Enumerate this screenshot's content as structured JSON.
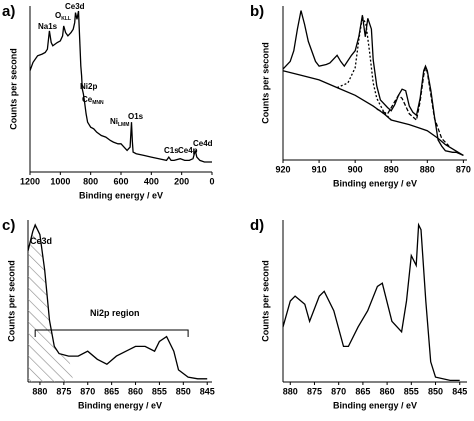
{
  "chart_data": [
    {
      "type": "line",
      "panel_label": "a)",
      "x_label": "Binding energy / eV",
      "y_label": "Counts per second",
      "xlim": [
        1200,
        0
      ],
      "xticks": [
        1200,
        1000,
        800,
        600,
        400,
        200,
        0
      ],
      "ylim": [
        0,
        100
      ],
      "annotations": [
        {
          "text": "Na1s"
        },
        {
          "text": "O",
          "sub": "KLL"
        },
        {
          "text": "Ce3d"
        },
        {
          "text": "Ni2p"
        },
        {
          "text": "Ce",
          "sub": "MNN"
        },
        {
          "text": "Ni",
          "sub": "LMM"
        },
        {
          "text": "O1s"
        },
        {
          "text": "C1s"
        },
        {
          "text": "Ce4p"
        },
        {
          "text": "Ce4d"
        }
      ],
      "series": [
        {
          "color": "#000000",
          "dash": "solid",
          "x": [
            1200,
            1180,
            1150,
            1120,
            1100,
            1085,
            1072,
            1060,
            1050,
            1020,
            1000,
            985,
            978,
            965,
            950,
            930,
            915,
            905,
            900,
            890,
            880,
            872,
            865,
            860,
            855,
            848,
            840,
            830,
            820,
            800,
            780,
            760,
            730,
            700,
            670,
            650,
            620,
            600,
            560,
            540,
            531,
            525,
            520,
            500,
            450,
            400,
            350,
            300,
            285,
            270,
            250,
            210,
            180,
            150,
            125,
            110,
            100,
            80,
            50,
            20,
            0
          ],
          "values": [
            61,
            66,
            70,
            71,
            72,
            74,
            85,
            78,
            76,
            78,
            79,
            82,
            88,
            84,
            82,
            84,
            86,
            90,
            96,
            92,
            97,
            80,
            64,
            58,
            50,
            47,
            42,
            35,
            30,
            27,
            26,
            24,
            22,
            21,
            19,
            18,
            17,
            17,
            13,
            15,
            30,
            18,
            12,
            11,
            10,
            9,
            8,
            7,
            9,
            7,
            7,
            8,
            7,
            7,
            8,
            13,
            9,
            7,
            6,
            6,
            6
          ]
        }
      ]
    },
    {
      "type": "line",
      "panel_label": "b)",
      "x_label": "Binding energy / eV",
      "y_label": "Counts per second",
      "xlim": [
        920,
        869
      ],
      "xticks": [
        920,
        910,
        900,
        890,
        880,
        870
      ],
      "ylim": [
        0,
        100
      ],
      "series": [
        {
          "color": "#000000",
          "dash": "solid",
          "x": [
            920,
            918,
            917,
            916,
            915,
            914,
            913,
            911,
            910,
            908,
            907,
            905,
            904,
            903,
            901,
            900,
            899,
            898,
            897.2,
            896.5,
            895.5,
            895,
            894,
            893,
            891,
            890,
            889,
            888,
            887,
            886,
            885,
            884,
            883,
            882,
            881,
            880.5,
            880,
            879,
            878,
            877,
            876,
            875,
            873,
            872,
            870
          ],
          "values": [
            59,
            64,
            71,
            85,
            97,
            88,
            77,
            64,
            61,
            62,
            63,
            68,
            64,
            61,
            68,
            71,
            80,
            94,
            80,
            92,
            85,
            65,
            48,
            39,
            34,
            32,
            36,
            42,
            46,
            45,
            35,
            31,
            29,
            40,
            58,
            61,
            58,
            45,
            28,
            13,
            9,
            6,
            5,
            5,
            3
          ]
        },
        {
          "color": "#000000",
          "dash": "solid",
          "x": [
            920,
            915,
            910,
            905,
            900,
            895,
            892,
            890,
            885,
            880,
            877,
            875,
            870
          ],
          "values": [
            58,
            55,
            52,
            47,
            42,
            35,
            30,
            26,
            23,
            19,
            14,
            10,
            3
          ]
        },
        {
          "color": "#000000",
          "dash": "2,2",
          "x": [
            905,
            902,
            900,
            899,
            898,
            897,
            896,
            895,
            894,
            892,
            890
          ],
          "values": [
            47,
            50,
            60,
            78,
            93,
            88,
            70,
            50,
            40,
            31,
            26
          ]
        },
        {
          "color": "#000000",
          "dash": "4,2",
          "x": [
            894,
            891,
            889,
            888,
            887,
            885,
            883,
            882,
            881,
            880.5,
            880,
            879,
            878,
            876,
            874
          ],
          "values": [
            33,
            30,
            38,
            42,
            40,
            30,
            26,
            38,
            55,
            60,
            57,
            42,
            27,
            14,
            9
          ]
        }
      ]
    },
    {
      "type": "line",
      "panel_label": "c)",
      "x_label": "Binding energy / eV",
      "y_label": "Counts per second",
      "xlim": [
        882.5,
        844
      ],
      "xticks": [
        880,
        875,
        870,
        865,
        860,
        855,
        850,
        845
      ],
      "ylim": [
        0,
        100
      ],
      "annotations": [
        {
          "text": "Ce3d"
        },
        {
          "text": "Ni2p region"
        }
      ],
      "series": [
        {
          "color": "#000000",
          "dash": "solid",
          "x": [
            882.5,
            881.5,
            881,
            880,
            879,
            878,
            877,
            876,
            874,
            872,
            870,
            868,
            866,
            864,
            862,
            860,
            858,
            856,
            855,
            853.5,
            852,
            851,
            849,
            847,
            845
          ],
          "values": [
            81,
            93,
            97,
            91,
            69,
            38,
            22,
            17.5,
            16,
            16,
            19,
            14,
            11,
            16,
            19,
            22,
            22,
            19,
            25,
            28,
            19,
            7.5,
            3,
            2,
            2
          ]
        }
      ]
    },
    {
      "type": "line",
      "panel_label": "d)",
      "x_label": "Binding energy / eV",
      "y_label": "Counts per second",
      "xlim": [
        881.5,
        843.5
      ],
      "xticks": [
        880,
        875,
        870,
        865,
        860,
        855,
        850,
        845
      ],
      "ylim": [
        0,
        100
      ],
      "series": [
        {
          "color": "#000000",
          "dash": "solid",
          "x": [
            881.5,
            880,
            879,
            877,
            876,
            874,
            873,
            871,
            869,
            868,
            866,
            864,
            862,
            861,
            859,
            857,
            856,
            855,
            854,
            853.5,
            853,
            852,
            851,
            850,
            847,
            845
          ],
          "values": [
            34,
            50,
            53,
            48,
            37.5,
            53,
            56,
            44,
            22,
            22,
            34,
            44,
            59,
            61,
            37.5,
            31,
            50,
            78,
            72,
            97,
            94,
            50,
            12.5,
            3,
            1,
            1
          ]
        }
      ]
    }
  ]
}
